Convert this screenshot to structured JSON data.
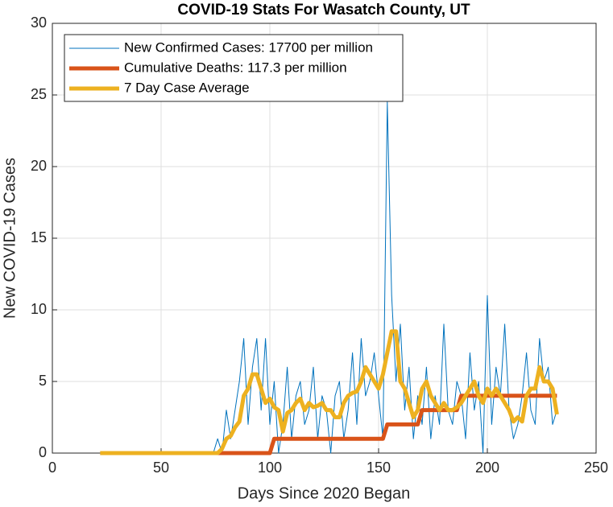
{
  "chart_data": {
    "type": "line",
    "title": "COVID-19 Stats For Wasatch County, UT",
    "x_label": "Days Since 2020 Began",
    "y_label": "New COVID-19 Cases",
    "xlim": [
      0,
      250
    ],
    "xticks": [
      0,
      50,
      100,
      150,
      200,
      250
    ],
    "ylim": [
      0,
      30
    ],
    "yticks": [
      0,
      5,
      10,
      15,
      20,
      25,
      30
    ],
    "grid": true,
    "legend": "northwest",
    "x": [
      22,
      24,
      26,
      28,
      30,
      32,
      34,
      36,
      38,
      40,
      42,
      44,
      46,
      48,
      50,
      52,
      54,
      56,
      58,
      60,
      62,
      64,
      66,
      68,
      70,
      72,
      74,
      76,
      78,
      80,
      82,
      84,
      86,
      88,
      90,
      92,
      94,
      96,
      98,
      100,
      102,
      104,
      106,
      108,
      110,
      112,
      114,
      116,
      118,
      120,
      122,
      124,
      126,
      128,
      130,
      132,
      134,
      136,
      138,
      140,
      142,
      144,
      146,
      148,
      150,
      152,
      154,
      156,
      158,
      160,
      162,
      164,
      166,
      168,
      170,
      172,
      174,
      176,
      178,
      180,
      182,
      184,
      186,
      188,
      190,
      192,
      194,
      196,
      198,
      200,
      202,
      204,
      206,
      208,
      210,
      212,
      214,
      216,
      218,
      220,
      222,
      224,
      226,
      228,
      230,
      232
    ],
    "series": [
      {
        "name": "New Confirmed Cases: 17700 per million",
        "color": "#0072BD",
        "width": 1,
        "values": [
          0,
          0,
          0,
          0,
          0,
          0,
          0,
          0,
          0,
          0,
          0,
          0,
          0,
          0,
          0,
          0,
          0,
          0,
          0,
          0,
          0,
          0,
          0,
          0,
          0,
          0,
          0,
          1,
          0,
          3,
          1,
          3,
          5,
          8,
          2,
          6,
          8,
          3,
          8,
          2,
          5,
          0,
          2,
          6,
          1,
          4,
          5,
          2,
          3,
          6,
          1,
          4,
          3,
          0,
          4,
          5,
          1,
          3,
          7,
          2,
          8,
          4,
          5,
          7,
          4,
          1,
          24.5,
          11,
          5,
          9,
          3,
          6,
          1,
          4,
          2,
          6,
          1,
          4,
          2,
          9,
          3,
          2,
          5,
          4,
          1,
          7,
          3,
          5,
          0,
          11,
          2,
          6,
          4,
          9,
          3,
          1,
          2,
          4,
          7,
          3,
          2,
          8,
          5,
          6,
          2,
          3
        ]
      },
      {
        "name": "Cumulative Deaths: 117.3 per million",
        "color": "#D95319",
        "width": 5,
        "values": [
          0,
          0,
          0,
          0,
          0,
          0,
          0,
          0,
          0,
          0,
          0,
          0,
          0,
          0,
          0,
          0,
          0,
          0,
          0,
          0,
          0,
          0,
          0,
          0,
          0,
          0,
          0,
          0,
          0,
          0,
          0,
          0,
          0,
          0,
          0,
          0,
          0,
          0,
          0,
          0,
          1,
          1,
          1,
          1,
          1,
          1,
          1,
          1,
          1,
          1,
          1,
          1,
          1,
          1,
          1,
          1,
          1,
          1,
          1,
          1,
          1,
          1,
          1,
          1,
          1,
          1,
          2,
          2,
          2,
          2,
          2,
          2,
          2,
          2,
          3,
          3,
          3,
          3,
          3,
          3,
          3,
          3,
          3,
          4,
          4,
          4,
          4,
          4,
          4,
          4,
          4,
          4,
          4,
          4,
          4,
          4,
          4,
          4,
          4,
          4,
          4,
          4,
          4,
          4,
          4,
          4
        ]
      },
      {
        "name": "7 Day Case Average",
        "color": "#EDB120",
        "width": 5,
        "values": [
          0,
          0,
          0,
          0,
          0,
          0,
          0,
          0,
          0,
          0,
          0,
          0,
          0,
          0,
          0,
          0,
          0,
          0,
          0,
          0,
          0,
          0,
          0,
          0,
          0,
          0,
          0,
          0,
          0.3,
          1,
          1.2,
          1.8,
          2.2,
          4,
          4.5,
          5.5,
          5.5,
          4.5,
          3.5,
          3.8,
          3.2,
          3,
          1.5,
          2.8,
          3,
          3.5,
          3.8,
          3,
          3.5,
          3.2,
          3.3,
          3.5,
          3,
          3,
          2.5,
          2.5,
          3.5,
          4,
          4.2,
          4.3,
          5,
          6,
          5.5,
          5,
          4.5,
          5.5,
          7,
          8.5,
          8.5,
          5,
          4.5,
          3.5,
          2.5,
          3,
          4.5,
          5,
          4,
          3.5,
          3,
          3.5,
          3,
          3,
          3.2,
          3.5,
          4,
          4.5,
          5,
          4,
          3.5,
          4.5,
          4,
          4.5,
          4,
          3.5,
          3,
          2.2,
          2.5,
          2.2,
          4,
          4.5,
          4.5,
          6,
          5,
          5,
          4.5,
          2.7
        ]
      }
    ]
  }
}
